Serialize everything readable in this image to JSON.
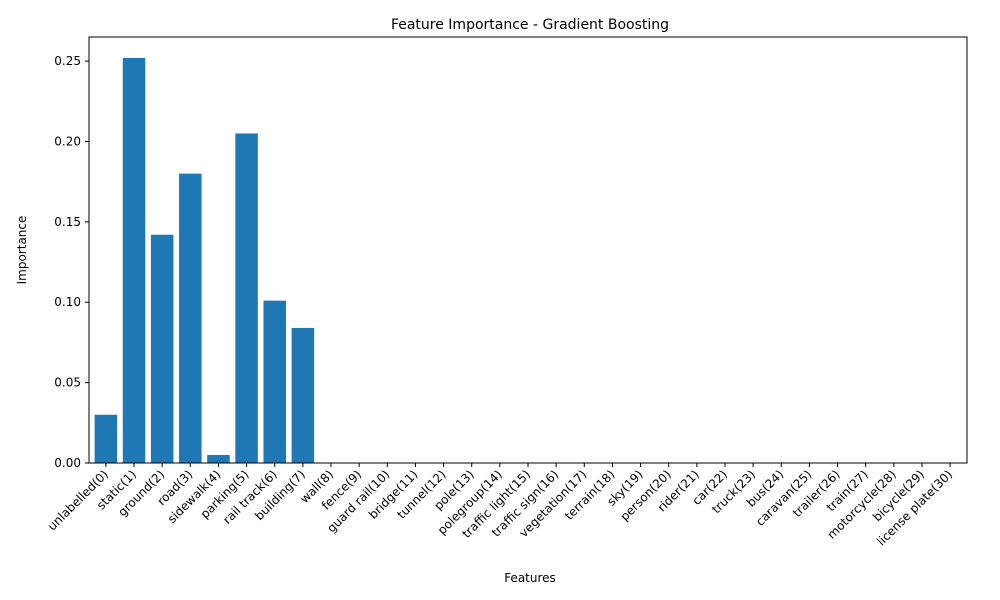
{
  "chart_data": {
    "type": "bar",
    "title": "Feature Importance - Gradient Boosting",
    "xlabel": "Features",
    "ylabel": "Importance",
    "ylim": [
      0,
      0.265
    ],
    "yticks": [
      "0.00",
      "0.05",
      "0.10",
      "0.15",
      "0.20",
      "0.25"
    ],
    "ytick_values": [
      0,
      0.05,
      0.1,
      0.15,
      0.2,
      0.25
    ],
    "grid": false,
    "bar_color": "#1f77b4",
    "categories": [
      "unlabelled(0)",
      "static(1)",
      "ground(2)",
      "road(3)",
      "sidewalk(4)",
      "parking(5)",
      "rail track(6)",
      "building(7)",
      "wall(8)",
      "fence(9)",
      "guard rail(10)",
      "bridge(11)",
      "tunnel(12)",
      "pole(13)",
      "polegroup(14)",
      "traffic light(15)",
      "traffic sign(16)",
      "vegetation(17)",
      "terrain(18)",
      "sky(19)",
      "person(20)",
      "rider(21)",
      "car(22)",
      "truck(23)",
      "bus(24)",
      "caravan(25)",
      "trailer(26)",
      "train(27)",
      "motorcycle(28)",
      "bicycle(29)",
      "license plate(30)"
    ],
    "values": [
      0.03,
      0.252,
      0.142,
      0.18,
      0.005,
      0.205,
      0.101,
      0.084,
      0,
      0,
      0,
      0,
      0,
      0,
      0,
      0,
      0,
      0,
      0,
      0,
      0,
      0,
      0,
      0,
      0,
      0,
      0,
      0,
      0,
      0,
      0
    ]
  }
}
